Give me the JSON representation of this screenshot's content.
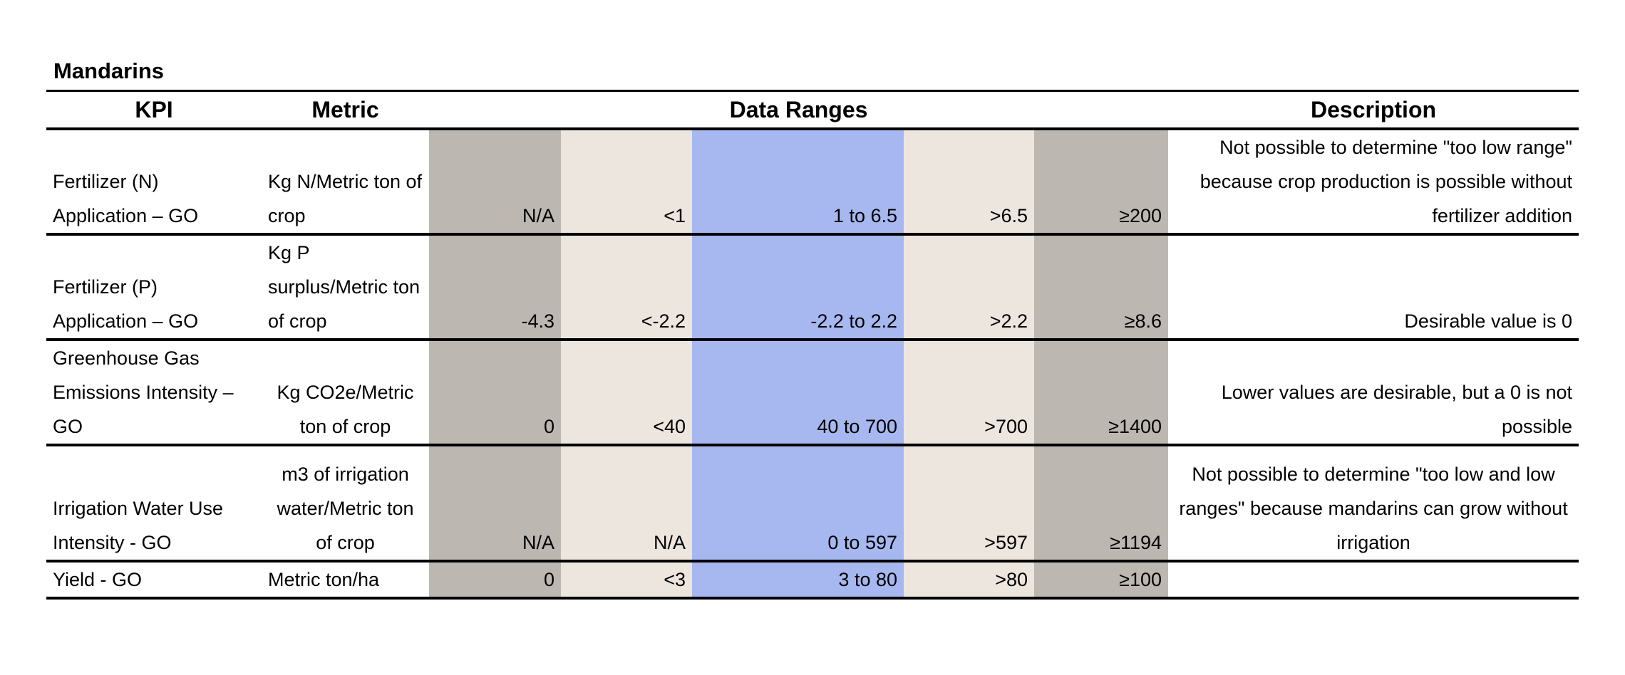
{
  "title": "Mandarins",
  "table": {
    "header": [
      "KPI",
      "Metric",
      "Data Ranges",
      "Description"
    ],
    "rows": [
      {
        "kpi": "Fertilizer (N) Application – GO",
        "metric": "Kg N/Metric ton of crop",
        "ranges": [
          "N/A",
          "<1",
          "1 to 6.5",
          ">6.5",
          "≥200"
        ],
        "description": "Not possible to determine \"too low range\" because crop production is possible without fertilizer addition"
      },
      {
        "kpi": "Fertilizer (P) Application – GO",
        "metric": "Kg P surplus/Metric ton of crop",
        "ranges": [
          "-4.3",
          "<-2.2",
          "-2.2 to 2.2",
          ">2.2",
          "≥8.6"
        ],
        "description": "Desirable value is 0"
      },
      {
        "kpi": "Greenhouse Gas Emissions Intensity – GO",
        "metric": "Kg CO2e/Metric ton of crop",
        "ranges": [
          "0",
          "<40",
          "40 to 700",
          ">700",
          "≥1400"
        ],
        "description": "Lower values are desirable, but a 0 is not possible"
      },
      {
        "kpi": "Irrigation Water Use Intensity - GO",
        "metric": "m3 of irrigation water/Metric ton of crop",
        "ranges": [
          "N/A",
          "N/A",
          "0 to 597",
          ">597",
          "≥1194"
        ],
        "description": "Not possible to determine \"too low and low ranges\" because mandarins can grow without irrigation"
      },
      {
        "kpi": "Yield - GO",
        "metric": "Metric ton/ha",
        "ranges": [
          "0",
          "<3",
          "3  to 80",
          ">80",
          "≥100"
        ],
        "description": ""
      }
    ]
  }
}
